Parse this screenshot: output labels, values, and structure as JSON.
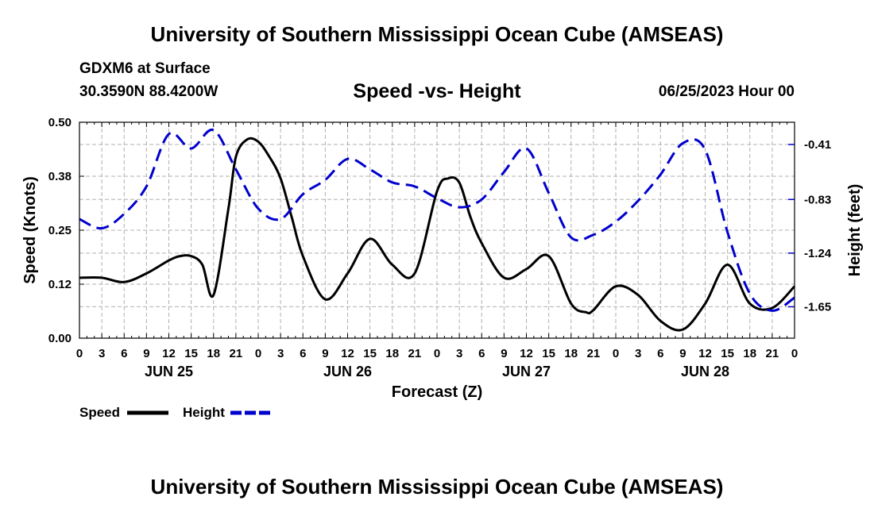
{
  "header": {
    "title": "University of Southern Mississippi Ocean Cube (AMSEAS)",
    "model_line": "GDXM6 at Surface",
    "location_line": "30.3590N  88.4200W",
    "subtitle": "Speed -vs- Height",
    "date_line": "06/25/2023 Hour 00"
  },
  "footer": {
    "title": "University of Southern Mississippi Ocean Cube (AMSEAS)"
  },
  "colors": {
    "speed": "#000000",
    "height": "#0000cc",
    "grid": "#b0b0b0"
  },
  "chart_data": {
    "type": "line",
    "xlabel": "Forecast (Z)",
    "ylabel_left": "Speed (Knots)",
    "ylabel_right": "Height (feet)",
    "x_range": [
      0,
      96
    ],
    "y_left_range": [
      0,
      0.5
    ],
    "y_right_range": [
      -1.89,
      -0.24
    ],
    "left_ticks": [
      0.0,
      0.125,
      0.25,
      0.375,
      0.5
    ],
    "left_tick_labels": [
      "0.00",
      "0.12",
      "0.25",
      "0.38",
      "0.50"
    ],
    "right_ticks": [
      -0.41,
      -0.83,
      -1.24,
      -1.65
    ],
    "right_tick_labels": [
      "-0.41",
      "-0.83",
      "-1.24",
      "-1.65"
    ],
    "hour_ticks": [
      0,
      3,
      6,
      9,
      12,
      15,
      18,
      21,
      24,
      27,
      30,
      33,
      36,
      39,
      42,
      45,
      48,
      51,
      54,
      57,
      60,
      63,
      66,
      69,
      72,
      75,
      78,
      81,
      84,
      87,
      90,
      93,
      96
    ],
    "hour_labels": [
      "0",
      "3",
      "6",
      "9",
      "12",
      "15",
      "18",
      "21",
      "0",
      "3",
      "6",
      "9",
      "12",
      "15",
      "18",
      "21",
      "0",
      "3",
      "6",
      "9",
      "12",
      "15",
      "18",
      "21",
      "0",
      "3",
      "6",
      "9",
      "12",
      "15",
      "18",
      "21",
      "0"
    ],
    "day_labels": [
      {
        "hour": 12,
        "label": "JUN 25"
      },
      {
        "hour": 36,
        "label": "JUN 26"
      },
      {
        "hour": 60,
        "label": "JUN 27"
      },
      {
        "hour": 84,
        "label": "JUN 28"
      }
    ],
    "legend": [
      {
        "name": "Speed",
        "style": "solid"
      },
      {
        "name": "Height",
        "style": "dashed"
      }
    ],
    "series": [
      {
        "name": "Speed",
        "axis": "left",
        "style": "solid",
        "x": [
          0,
          3,
          6,
          9,
          12,
          13.5,
          15,
          16.5,
          18,
          20,
          21,
          22.5,
          24,
          25.5,
          27,
          28.5,
          30,
          33,
          36,
          39,
          42,
          45,
          48,
          49.5,
          51,
          52.5,
          54,
          57,
          60,
          63,
          66,
          68,
          69,
          72,
          75,
          78,
          81,
          84,
          87,
          90,
          93,
          96
        ],
        "y": [
          0.14,
          0.14,
          0.13,
          0.15,
          0.18,
          0.19,
          0.19,
          0.17,
          0.1,
          0.3,
          0.42,
          0.46,
          0.455,
          0.42,
          0.37,
          0.28,
          0.19,
          0.09,
          0.15,
          0.23,
          0.17,
          0.15,
          0.34,
          0.37,
          0.36,
          0.28,
          0.22,
          0.14,
          0.16,
          0.19,
          0.08,
          0.06,
          0.065,
          0.12,
          0.1,
          0.04,
          0.02,
          0.08,
          0.17,
          0.08,
          0.07,
          0.12
        ]
      },
      {
        "name": "Height",
        "axis": "right",
        "style": "dashed",
        "x": [
          0,
          3,
          6,
          9,
          12,
          15,
          18,
          21,
          24,
          27,
          30,
          33,
          36,
          39,
          42,
          45,
          48,
          51,
          54,
          57,
          60,
          63,
          66,
          69,
          72,
          75,
          78,
          81,
          84,
          87,
          90,
          93,
          96
        ],
        "y": [
          -0.98,
          -1.05,
          -0.94,
          -0.73,
          -0.33,
          -0.44,
          -0.3,
          -0.6,
          -0.9,
          -0.98,
          -0.79,
          -0.68,
          -0.52,
          -0.6,
          -0.7,
          -0.73,
          -0.82,
          -0.89,
          -0.83,
          -0.62,
          -0.44,
          -0.78,
          -1.12,
          -1.1,
          -1.0,
          -0.84,
          -0.64,
          -0.4,
          -0.45,
          -1.08,
          -1.55,
          -1.68,
          -1.58
        ]
      }
    ]
  }
}
